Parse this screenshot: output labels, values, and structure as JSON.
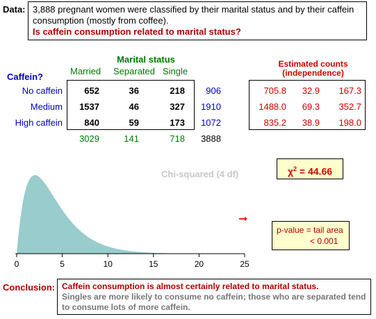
{
  "data_label": "Data:",
  "description": "3,888 pregnant women were classified by their marital status and by their caffein consumption (mostly from coffee).",
  "question": "Is caffein consumption related to marital status?",
  "marital_title": "Marital status",
  "caffeine_title": "Caffein?",
  "columns": [
    "Married",
    "Separated",
    "Single"
  ],
  "rows": [
    {
      "label": "No caffein",
      "values": [
        "652",
        "36",
        "218"
      ],
      "total": "906"
    },
    {
      "label": "Medium",
      "values": [
        "1537",
        "46",
        "327"
      ],
      "total": "1910"
    },
    {
      "label": "High caffein",
      "values": [
        "840",
        "59",
        "173"
      ],
      "total": "1072"
    }
  ],
  "column_totals": [
    "3029",
    "141",
    "718"
  ],
  "grand_total": "3888",
  "estimated_title_1": "Estimated counts",
  "estimated_title_2": "(independence)",
  "estimated": [
    [
      "705.8",
      "32.9",
      "167.3"
    ],
    [
      "1488.0",
      "69.3",
      "352.7"
    ],
    [
      "835.2",
      "38.9",
      "198.0"
    ]
  ],
  "chi_caption": "Chi-squared (4 df)",
  "chi_stat_label": "χ",
  "chi_stat_power": "2",
  "chi_stat_value": "= 44.66",
  "pvalue_line1": "p-value  =  tail area",
  "pvalue_line2": "< 0.001",
  "arrow_symbol": "➞",
  "axis_ticks": [
    "0",
    "5",
    "10",
    "15",
    "20",
    "25"
  ],
  "conclusion_label": "Conclusion:",
  "conclusion_main": "Caffein consumption is almost certainly related to marital status.",
  "conclusion_detail": "Singles are more likely to consume no caffein; those who are separated tend to consume lots of more caffein.",
  "colors": {
    "curve_fill": "#99cccc",
    "highlight_box": "#ffffcc",
    "red": "#d00000",
    "green": "#007a00",
    "blue": "#0000cc"
  }
}
